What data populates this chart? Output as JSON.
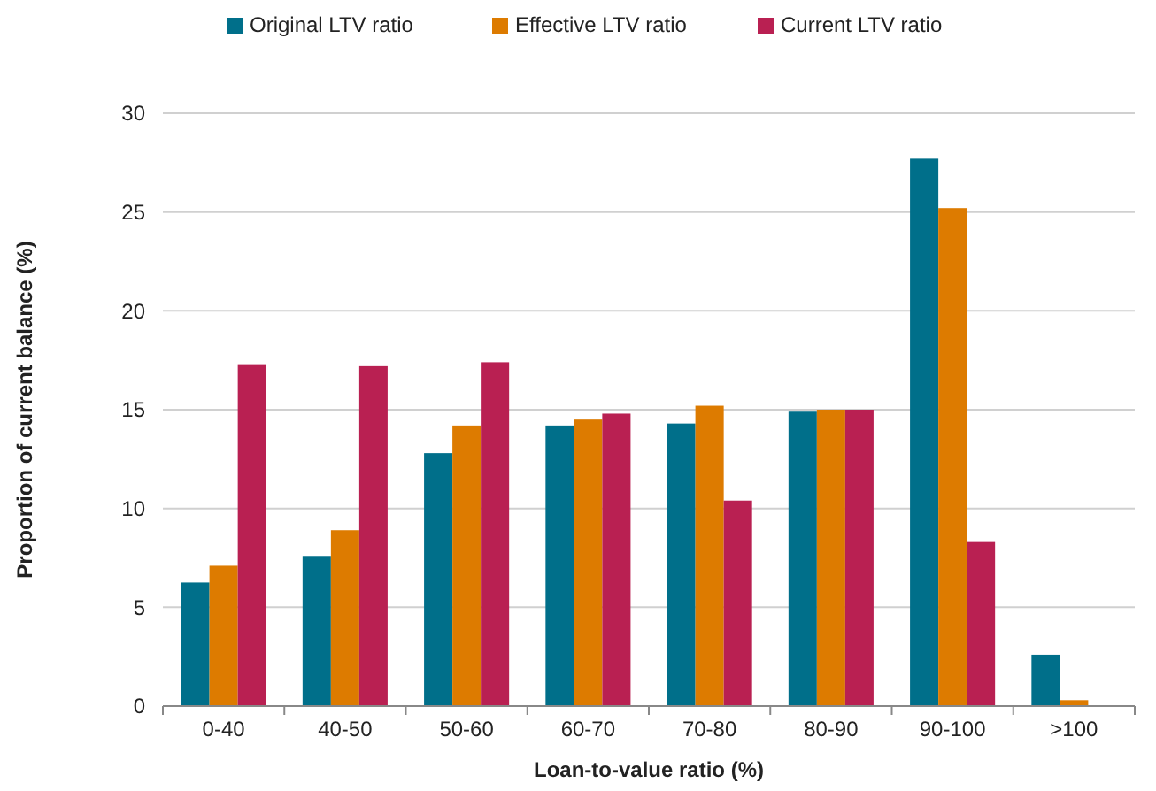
{
  "chart_data": {
    "type": "bar",
    "xlabel": "Loan-to-value ratio (%)",
    "ylabel": "Proportion of current balance (%)",
    "categories": [
      "0-40",
      "40-50",
      "50-60",
      "60-70",
      "70-80",
      "80-90",
      "90-100",
      ">100"
    ],
    "series": [
      {
        "name": "Original LTV ratio",
        "color": "#006f8a",
        "values": [
          6.25,
          7.6,
          12.8,
          14.2,
          14.3,
          14.9,
          27.7,
          2.6
        ]
      },
      {
        "name": "Effective LTV ratio",
        "color": "#dd7b00",
        "values": [
          7.1,
          8.9,
          14.2,
          14.5,
          15.2,
          15.0,
          25.2,
          0.3
        ]
      },
      {
        "name": "Current LTV ratio",
        "color": "#b92052",
        "values": [
          17.3,
          17.2,
          17.4,
          14.8,
          10.4,
          15.0,
          8.3,
          0
        ]
      }
    ],
    "ylim": [
      0,
      30
    ],
    "yticks": [
      0,
      5,
      10,
      15,
      20,
      25,
      30
    ],
    "grid": "y",
    "legend": "top"
  }
}
